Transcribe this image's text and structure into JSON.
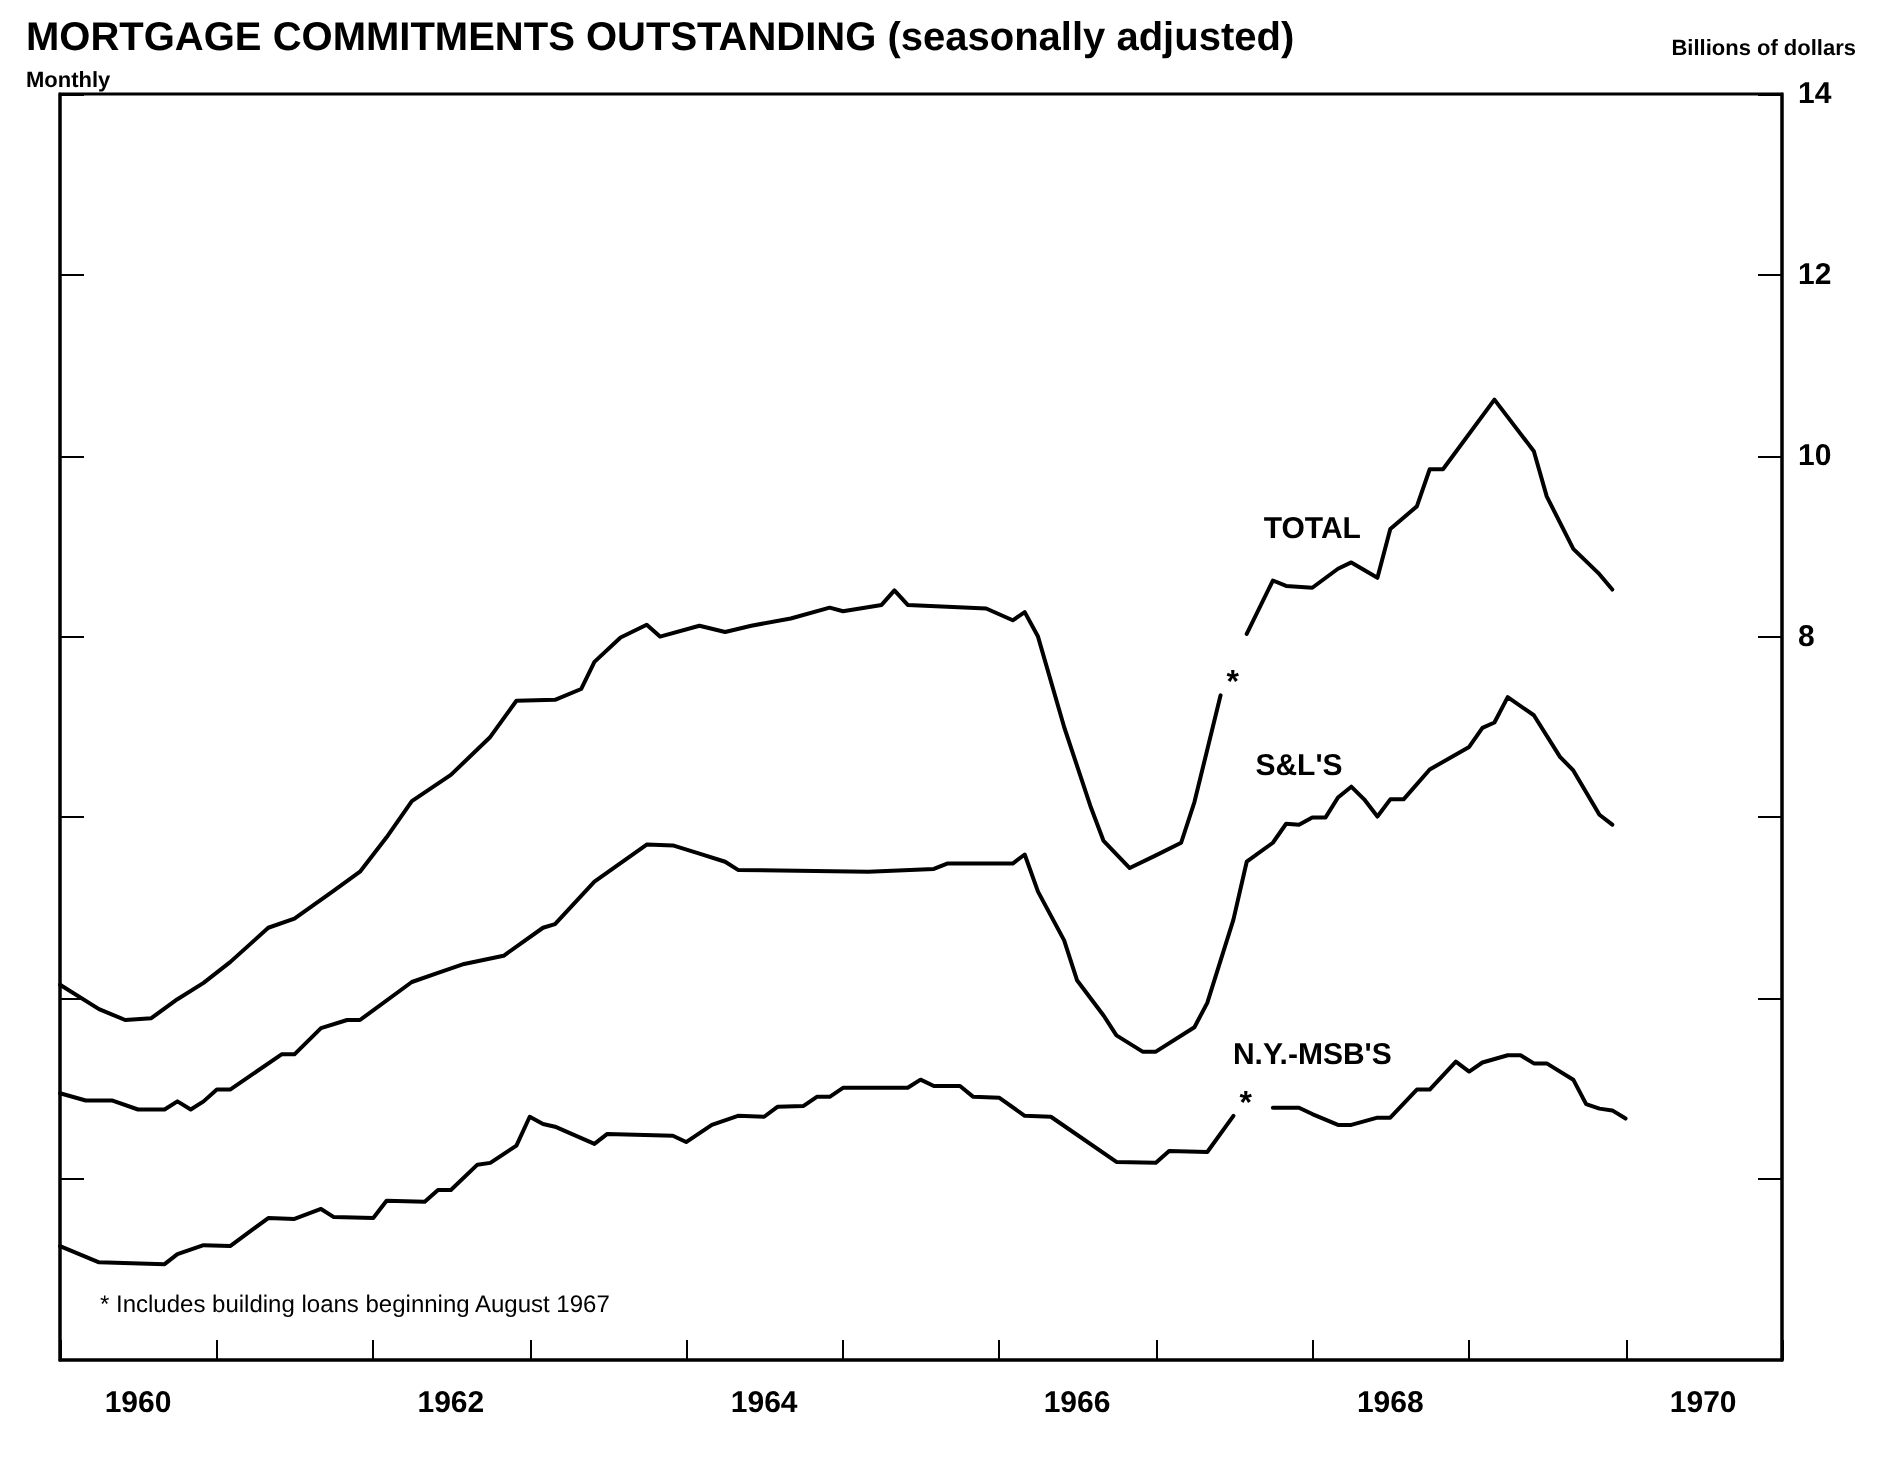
{
  "chart_data": {
    "type": "line",
    "title": "MORTGAGE COMMITMENTS OUTSTANDING (seasonally adjusted)",
    "subtitle": "Monthly",
    "ylabel": "Billions of dollars",
    "xlim": [
      "1960-01",
      "1971-01"
    ],
    "xticks": [
      {
        "value": "1960-01",
        "label": null
      },
      {
        "value": "1960-07",
        "label": "1960"
      },
      {
        "value": "1961-01",
        "label": null
      },
      {
        "value": "1962-01",
        "label": null
      },
      {
        "value": "1962-07",
        "label": "1962"
      },
      {
        "value": "1963-01",
        "label": null
      },
      {
        "value": "1964-01",
        "label": null
      },
      {
        "value": "1964-07",
        "label": "1964"
      },
      {
        "value": "1965-01",
        "label": null
      },
      {
        "value": "1966-01",
        "label": null
      },
      {
        "value": "1966-07",
        "label": "1966"
      },
      {
        "value": "1967-01",
        "label": null
      },
      {
        "value": "1968-01",
        "label": null
      },
      {
        "value": "1968-07",
        "label": "1968"
      },
      {
        "value": "1969-01",
        "label": null
      },
      {
        "value": "1970-01",
        "label": null
      },
      {
        "value": "1970-07",
        "label": "1970"
      },
      {
        "value": "1971-01",
        "label": null
      }
    ],
    "ylim": [
      0,
      14
    ],
    "yticks": [
      {
        "value": 2,
        "label": null
      },
      {
        "value": 4,
        "label": null
      },
      {
        "value": 6,
        "label": null
      },
      8,
      10,
      12,
      14
    ],
    "grid": false,
    "legend": false,
    "marker": "none",
    "line_style": "solid",
    "series": [
      {
        "name": "TOTAL",
        "color": "#000000",
        "x": [
          "1960-01",
          "1960-04",
          "1960-06",
          "1960-08",
          "1960-10",
          "1960-12",
          "1961-02",
          "1961-05",
          "1961-07",
          "1961-10",
          "1961-12",
          "1962-02",
          "1962-04",
          "1962-07",
          "1962-10",
          "1962-12",
          "1963-03",
          "1963-05",
          "1963-06",
          "1963-08",
          "1963-10",
          "1963-11",
          "1964-02",
          "1964-04",
          "1964-06",
          "1964-09",
          "1964-12",
          "1965-01",
          "1965-04",
          "1965-05",
          "1965-06",
          "1965-09",
          "1965-12",
          "1966-02",
          "1966-03",
          "1966-04",
          "1966-06",
          "1966-08",
          "1966-09",
          "1966-11",
          "1967-01",
          "1967-03",
          "1967-04",
          "1967-06",
          "1967-07",
          "1967-08",
          "1967-10",
          "1967-11",
          "1968-01",
          "1968-03",
          "1968-04",
          "1968-06",
          "1968-07",
          "1968-09",
          "1968-10",
          "1968-11",
          "1969-03",
          "1969-06",
          "1969-07",
          "1969-09",
          "1969-11",
          "1969-12"
        ],
        "values": [
          4.15,
          3.88,
          3.76,
          3.78,
          3.99,
          4.17,
          4.4,
          4.78,
          4.88,
          5.19,
          5.4,
          5.78,
          6.18,
          6.47,
          6.89,
          7.29,
          7.3,
          7.42,
          7.72,
          7.99,
          8.13,
          8.0,
          8.12,
          8.05,
          8.12,
          8.2,
          8.32,
          8.28,
          8.35,
          8.51,
          8.35,
          8.33,
          8.31,
          8.18,
          8.27,
          8.0,
          7.0,
          6.13,
          5.74,
          5.44,
          5.58,
          5.72,
          6.17,
          7.35,
          null,
          8.03,
          8.62,
          8.56,
          8.54,
          8.75,
          8.82,
          8.65,
          9.19,
          9.44,
          9.85,
          9.85,
          10.62,
          10.05,
          9.55,
          8.97,
          8.69,
          8.52
        ]
      },
      {
        "name": "S&L'S",
        "color": "#000000",
        "x": [
          "1960-01",
          "1960-03",
          "1960-05",
          "1960-07",
          "1960-09",
          "1960-10",
          "1960-11",
          "1960-12",
          "1961-01",
          "1961-02",
          "1961-06",
          "1961-07",
          "1961-09",
          "1961-11",
          "1961-12",
          "1962-04",
          "1962-06",
          "1962-08",
          "1962-11",
          "1963-02",
          "1963-03",
          "1963-06",
          "1963-10",
          "1963-12",
          "1964-02",
          "1964-04",
          "1964-05",
          "1965-03",
          "1965-08",
          "1965-09",
          "1966-02",
          "1966-03",
          "1966-04",
          "1966-06",
          "1966-07",
          "1966-09",
          "1966-10",
          "1966-12",
          "1967-01",
          "1967-04",
          "1967-05",
          "1967-07",
          "1967-08",
          "1967-10",
          "1967-11",
          "1967-12",
          "1968-01",
          "1968-02",
          "1968-03",
          "1968-04",
          "1968-05",
          "1968-06",
          "1968-07",
          "1968-08",
          "1968-10",
          "1969-01",
          "1969-02",
          "1969-03",
          "1969-04",
          "1969-06",
          "1969-08",
          "1969-09",
          "1969-11",
          "1969-12"
        ],
        "values": [
          2.95,
          2.87,
          2.87,
          2.77,
          2.77,
          2.86,
          2.77,
          2.86,
          2.99,
          2.99,
          3.38,
          3.38,
          3.67,
          3.76,
          3.76,
          4.18,
          4.28,
          4.38,
          4.47,
          4.78,
          4.82,
          5.29,
          5.7,
          5.69,
          5.6,
          5.51,
          5.42,
          5.4,
          5.43,
          5.49,
          5.49,
          5.59,
          5.18,
          4.64,
          4.2,
          3.81,
          3.59,
          3.41,
          3.41,
          3.68,
          3.95,
          4.87,
          5.51,
          5.72,
          5.93,
          5.92,
          6.0,
          6.0,
          6.22,
          6.34,
          6.2,
          6.01,
          6.2,
          6.2,
          6.53,
          6.78,
          6.99,
          7.05,
          7.33,
          7.13,
          6.67,
          6.52,
          6.03,
          5.92
        ]
      },
      {
        "name": "N.Y.-MSB'S",
        "color": "#000000",
        "x": [
          "1960-01",
          "1960-04",
          "1960-09",
          "1960-10",
          "1960-12",
          "1961-02",
          "1961-05",
          "1961-07",
          "1961-09",
          "1961-10",
          "1962-01",
          "1962-02",
          "1962-05",
          "1962-06",
          "1962-07",
          "1962-09",
          "1962-10",
          "1962-12",
          "1963-01",
          "1963-02",
          "1963-03",
          "1963-06",
          "1963-07",
          "1963-12",
          "1964-01",
          "1964-03",
          "1964-05",
          "1964-07",
          "1964-08",
          "1964-10",
          "1964-11",
          "1964-12",
          "1965-01",
          "1965-06",
          "1965-07",
          "1965-08",
          "1965-10",
          "1965-11",
          "1966-01",
          "1966-03",
          "1966-05",
          "1966-10",
          "1967-01",
          "1967-02",
          "1967-05",
          "1967-07",
          "1967-08",
          "1967-10",
          "1967-12",
          "1968-01",
          "1968-03",
          "1968-04",
          "1968-06",
          "1968-07",
          "1968-09",
          "1968-10",
          "1968-12",
          "1969-01",
          "1969-02",
          "1969-04",
          "1969-05",
          "1969-06",
          "1969-07",
          "1969-09",
          "1969-10",
          "1969-11",
          "1969-12",
          "1970-01"
        ],
        "values": [
          1.26,
          1.08,
          1.06,
          1.17,
          1.27,
          1.26,
          1.57,
          1.56,
          1.67,
          1.58,
          1.57,
          1.76,
          1.75,
          1.88,
          1.88,
          2.16,
          2.18,
          2.37,
          2.69,
          2.61,
          2.58,
          2.39,
          2.5,
          2.48,
          2.41,
          2.6,
          2.7,
          2.69,
          2.8,
          2.81,
          2.91,
          2.91,
          3.01,
          3.01,
          3.1,
          3.03,
          3.03,
          2.91,
          2.9,
          2.7,
          2.69,
          2.19,
          2.18,
          2.31,
          2.3,
          2.7,
          null,
          2.79,
          2.79,
          2.72,
          2.6,
          2.6,
          2.68,
          2.68,
          2.99,
          2.99,
          3.3,
          3.19,
          3.29,
          3.37,
          3.37,
          3.28,
          3.28,
          3.1,
          2.83,
          2.78,
          2.76,
          2.67
        ]
      }
    ],
    "annotations": [
      {
        "text": "*",
        "x": "1967-06",
        "y": 7.35
      },
      {
        "text": "*",
        "x": "1967-07",
        "y": 2.7
      },
      "* Includes building loans beginning August 1967"
    ]
  }
}
